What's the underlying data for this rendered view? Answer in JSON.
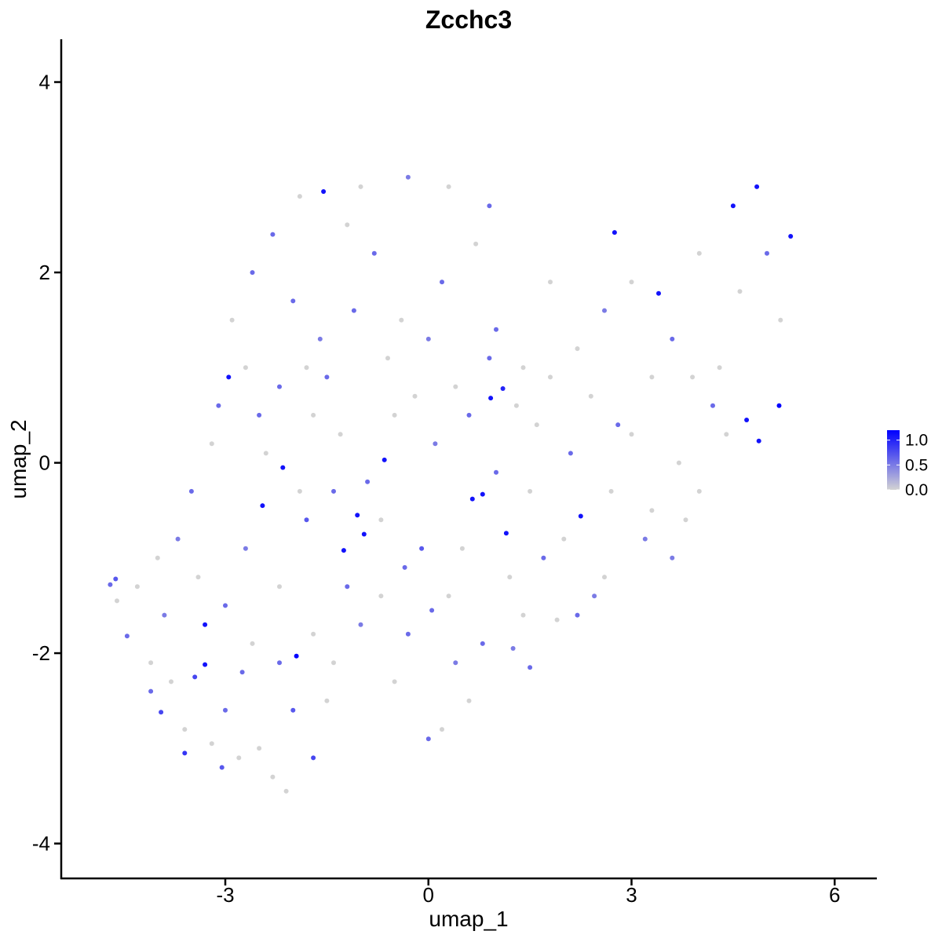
{
  "chart_data": {
    "type": "scatter",
    "title": "Zcchc3",
    "xlabel": "umap_1",
    "ylabel": "umap_2",
    "xlim": [
      -5.4,
      6.6
    ],
    "ylim": [
      -4.35,
      4.45
    ],
    "xticks": [
      -3,
      0,
      3,
      6
    ],
    "xtick_labels": [
      "-3",
      "0",
      "3",
      "6"
    ],
    "yticks": [
      -4,
      -2,
      0,
      2,
      4
    ],
    "ytick_labels": [
      "-4",
      "-2",
      "0",
      "2",
      "4"
    ],
    "grid": false,
    "legend": {
      "placement": "right",
      "type": "colorbar",
      "labels": [
        "1.0",
        "0.5",
        "0.0"
      ],
      "values": [
        1.0,
        0.5,
        0.0
      ],
      "range": [
        0.0,
        1.2
      ],
      "color_low": "#d3d3d3",
      "color_high": "#0000ff"
    },
    "points": [
      [
        -4.7,
        -1.28,
        0.6
      ],
      [
        -4.62,
        -1.22,
        0.7
      ],
      [
        -4.6,
        -1.45,
        0
      ],
      [
        -4.45,
        -1.82,
        0.6
      ],
      [
        -4.1,
        -2.1,
        0
      ],
      [
        -3.95,
        -2.62,
        0.8
      ],
      [
        -3.6,
        -3.05,
        0.9
      ],
      [
        -3.45,
        -2.25,
        0.8
      ],
      [
        -3.3,
        -1.7,
        1.1
      ],
      [
        -3.3,
        -2.12,
        1.1
      ],
      [
        -3.2,
        -2.95,
        0
      ],
      [
        -3.05,
        -3.2,
        0.7
      ],
      [
        -2.75,
        -2.2,
        0.6
      ],
      [
        -2.45,
        -0.45,
        1.1
      ],
      [
        -2.15,
        -0.05,
        1.1
      ],
      [
        -1.95,
        -2.03,
        1.2
      ],
      [
        -1.7,
        -3.1,
        0.8
      ],
      [
        -1.4,
        -2.1,
        0
      ],
      [
        -1.25,
        -0.92,
        1.1
      ],
      [
        -1.05,
        -0.55,
        1.1
      ],
      [
        -0.95,
        -0.75,
        1.1
      ],
      [
        -0.65,
        0.03,
        1.1
      ],
      [
        -0.35,
        -1.1,
        0.6
      ],
      [
        -0.1,
        -0.9,
        0.7
      ],
      [
        0.05,
        -1.55,
        0.6
      ],
      [
        0.2,
        -2.8,
        0
      ],
      [
        0.4,
        -2.1,
        0.5
      ],
      [
        0.65,
        -0.38,
        1.1
      ],
      [
        0.8,
        -0.33,
        1.1
      ],
      [
        1.15,
        -0.74,
        1.1
      ],
      [
        1.25,
        -1.95,
        0.5
      ],
      [
        1.5,
        -2.15,
        0.6
      ],
      [
        1.9,
        -1.65,
        0
      ],
      [
        2.25,
        -0.56,
        1.1
      ],
      [
        2.45,
        -1.4,
        0.5
      ],
      [
        2.75,
        2.42,
        1.1
      ],
      [
        3.4,
        1.78,
        1.1
      ],
      [
        3.0,
        0.3,
        0
      ],
      [
        3.3,
        -0.5,
        0
      ],
      [
        3.6,
        -1.0,
        0.5
      ],
      [
        3.9,
        0.9,
        0
      ],
      [
        4.2,
        0.6,
        0.6
      ],
      [
        4.5,
        2.7,
        1.1
      ],
      [
        4.7,
        0.45,
        1.1
      ],
      [
        4.88,
        0.23,
        1.1
      ],
      [
        5.18,
        0.6,
        1.2
      ],
      [
        5.35,
        2.38,
        1.1
      ],
      [
        4.85,
        2.9,
        1.1
      ],
      [
        -2.95,
        0.9,
        1.1
      ],
      [
        -1.55,
        2.85,
        1.1
      ],
      [
        0.92,
        0.68,
        1.1
      ],
      [
        1.1,
        0.78,
        1.0
      ],
      [
        -2.5,
        0.5,
        0.6
      ],
      [
        -2.0,
        1.7,
        0.6
      ],
      [
        -1.6,
        1.3,
        0.5
      ],
      [
        -1.2,
        2.5,
        0
      ],
      [
        -0.8,
        2.2,
        0.6
      ],
      [
        -0.4,
        1.5,
        0
      ],
      [
        0.2,
        1.9,
        0.6
      ],
      [
        0.7,
        2.3,
        0
      ],
      [
        1.0,
        1.4,
        0.6
      ],
      [
        1.4,
        1.0,
        0
      ],
      [
        1.8,
        1.9,
        0
      ],
      [
        2.2,
        1.2,
        0
      ],
      [
        2.6,
        1.6,
        0.5
      ],
      [
        -3.5,
        -0.3,
        0.6
      ],
      [
        -3.2,
        0.2,
        0
      ],
      [
        -2.7,
        -0.9,
        0.5
      ],
      [
        -2.2,
        -1.3,
        0
      ],
      [
        -1.8,
        -0.6,
        0.7
      ],
      [
        -1.3,
        0.3,
        0
      ],
      [
        -0.9,
        -0.2,
        0.6
      ],
      [
        -0.5,
        0.5,
        0
      ],
      [
        0.1,
        0.2,
        0.5
      ],
      [
        0.5,
        -0.9,
        0
      ],
      [
        1.0,
        -0.1,
        0.6
      ],
      [
        1.6,
        0.4,
        0
      ],
      [
        2.0,
        -0.8,
        0
      ],
      [
        -3.8,
        -2.3,
        0
      ],
      [
        -3.0,
        -2.6,
        0.6
      ],
      [
        -2.5,
        -3.0,
        0
      ],
      [
        -2.0,
        -2.6,
        0.7
      ],
      [
        -1.5,
        -2.5,
        0
      ],
      [
        -1.0,
        -1.7,
        0.5
      ],
      [
        -0.5,
        -2.3,
        0
      ],
      [
        0.0,
        -2.9,
        0.6
      ],
      [
        0.6,
        -2.5,
        0
      ],
      [
        1.2,
        -1.2,
        0
      ],
      [
        1.7,
        -1.0,
        0.6
      ],
      [
        -2.3,
        -3.3,
        0
      ],
      [
        -2.8,
        -3.1,
        0
      ],
      [
        -2.1,
        -3.45,
        0
      ],
      [
        -3.9,
        -1.6,
        0.5
      ],
      [
        -4.1,
        -2.4,
        0.6
      ],
      [
        -3.6,
        -2.8,
        0
      ],
      [
        -2.6,
        2.0,
        0.6
      ],
      [
        -2.9,
        1.5,
        0
      ],
      [
        -2.3,
        2.4,
        0.6
      ],
      [
        -1.9,
        2.8,
        0
      ],
      [
        -1.0,
        2.9,
        0
      ],
      [
        -0.3,
        3.0,
        0.5
      ],
      [
        0.3,
        2.9,
        0
      ],
      [
        0.9,
        2.7,
        0.6
      ],
      [
        -2.7,
        1.0,
        0
      ],
      [
        -2.2,
        0.8,
        0.6
      ],
      [
        -1.7,
        0.5,
        0
      ],
      [
        -1.4,
        -0.3,
        0.6
      ],
      [
        -0.7,
        -0.6,
        0
      ],
      [
        4.0,
        2.2,
        0
      ],
      [
        3.6,
        1.3,
        0.6
      ],
      [
        4.3,
        1.0,
        0
      ],
      [
        4.6,
        1.8,
        0
      ],
      [
        5.0,
        2.2,
        0.6
      ],
      [
        5.2,
        1.5,
        0
      ],
      [
        3.0,
        1.9,
        0
      ],
      [
        3.3,
        0.9,
        0
      ],
      [
        2.8,
        0.4,
        0.6
      ],
      [
        3.7,
        0.0,
        0
      ],
      [
        4.4,
        0.3,
        0
      ],
      [
        4.0,
        -0.3,
        0
      ],
      [
        3.2,
        -0.8,
        0.5
      ],
      [
        3.8,
        -0.6,
        0
      ],
      [
        2.6,
        -1.2,
        0
      ],
      [
        2.2,
        -1.6,
        0.6
      ],
      [
        1.4,
        -1.6,
        0
      ],
      [
        0.8,
        -1.9,
        0.6
      ],
      [
        -4.3,
        -1.3,
        0
      ],
      [
        -4.0,
        -1.0,
        0
      ],
      [
        -3.7,
        -0.8,
        0.5
      ],
      [
        -3.4,
        -1.2,
        0
      ],
      [
        -3.0,
        -1.5,
        0.6
      ],
      [
        -2.6,
        -1.9,
        0
      ],
      [
        -2.2,
        -2.1,
        0.6
      ],
      [
        -1.7,
        -1.8,
        0
      ],
      [
        -1.2,
        -1.3,
        0.6
      ],
      [
        -0.7,
        -1.4,
        0
      ],
      [
        -0.3,
        -1.8,
        0.6
      ],
      [
        0.3,
        -1.4,
        0
      ],
      [
        -1.8,
        1.0,
        0
      ],
      [
        -1.1,
        1.6,
        0.6
      ],
      [
        -0.6,
        1.1,
        0
      ],
      [
        0.0,
        1.3,
        0.5
      ],
      [
        0.4,
        0.8,
        0
      ],
      [
        0.9,
        1.1,
        0.6
      ],
      [
        -3.1,
        0.6,
        0.6
      ],
      [
        -2.4,
        0.1,
        0
      ],
      [
        -1.9,
        -0.3,
        0
      ],
      [
        -1.5,
        0.9,
        0.6
      ],
      [
        -0.2,
        0.7,
        0
      ],
      [
        0.6,
        0.5,
        0.6
      ],
      [
        1.3,
        0.6,
        0
      ],
      [
        1.8,
        0.9,
        0
      ],
      [
        2.4,
        0.7,
        0
      ],
      [
        2.1,
        0.1,
        0.6
      ],
      [
        1.5,
        -0.3,
        0
      ],
      [
        2.7,
        -0.3,
        0
      ]
    ]
  }
}
